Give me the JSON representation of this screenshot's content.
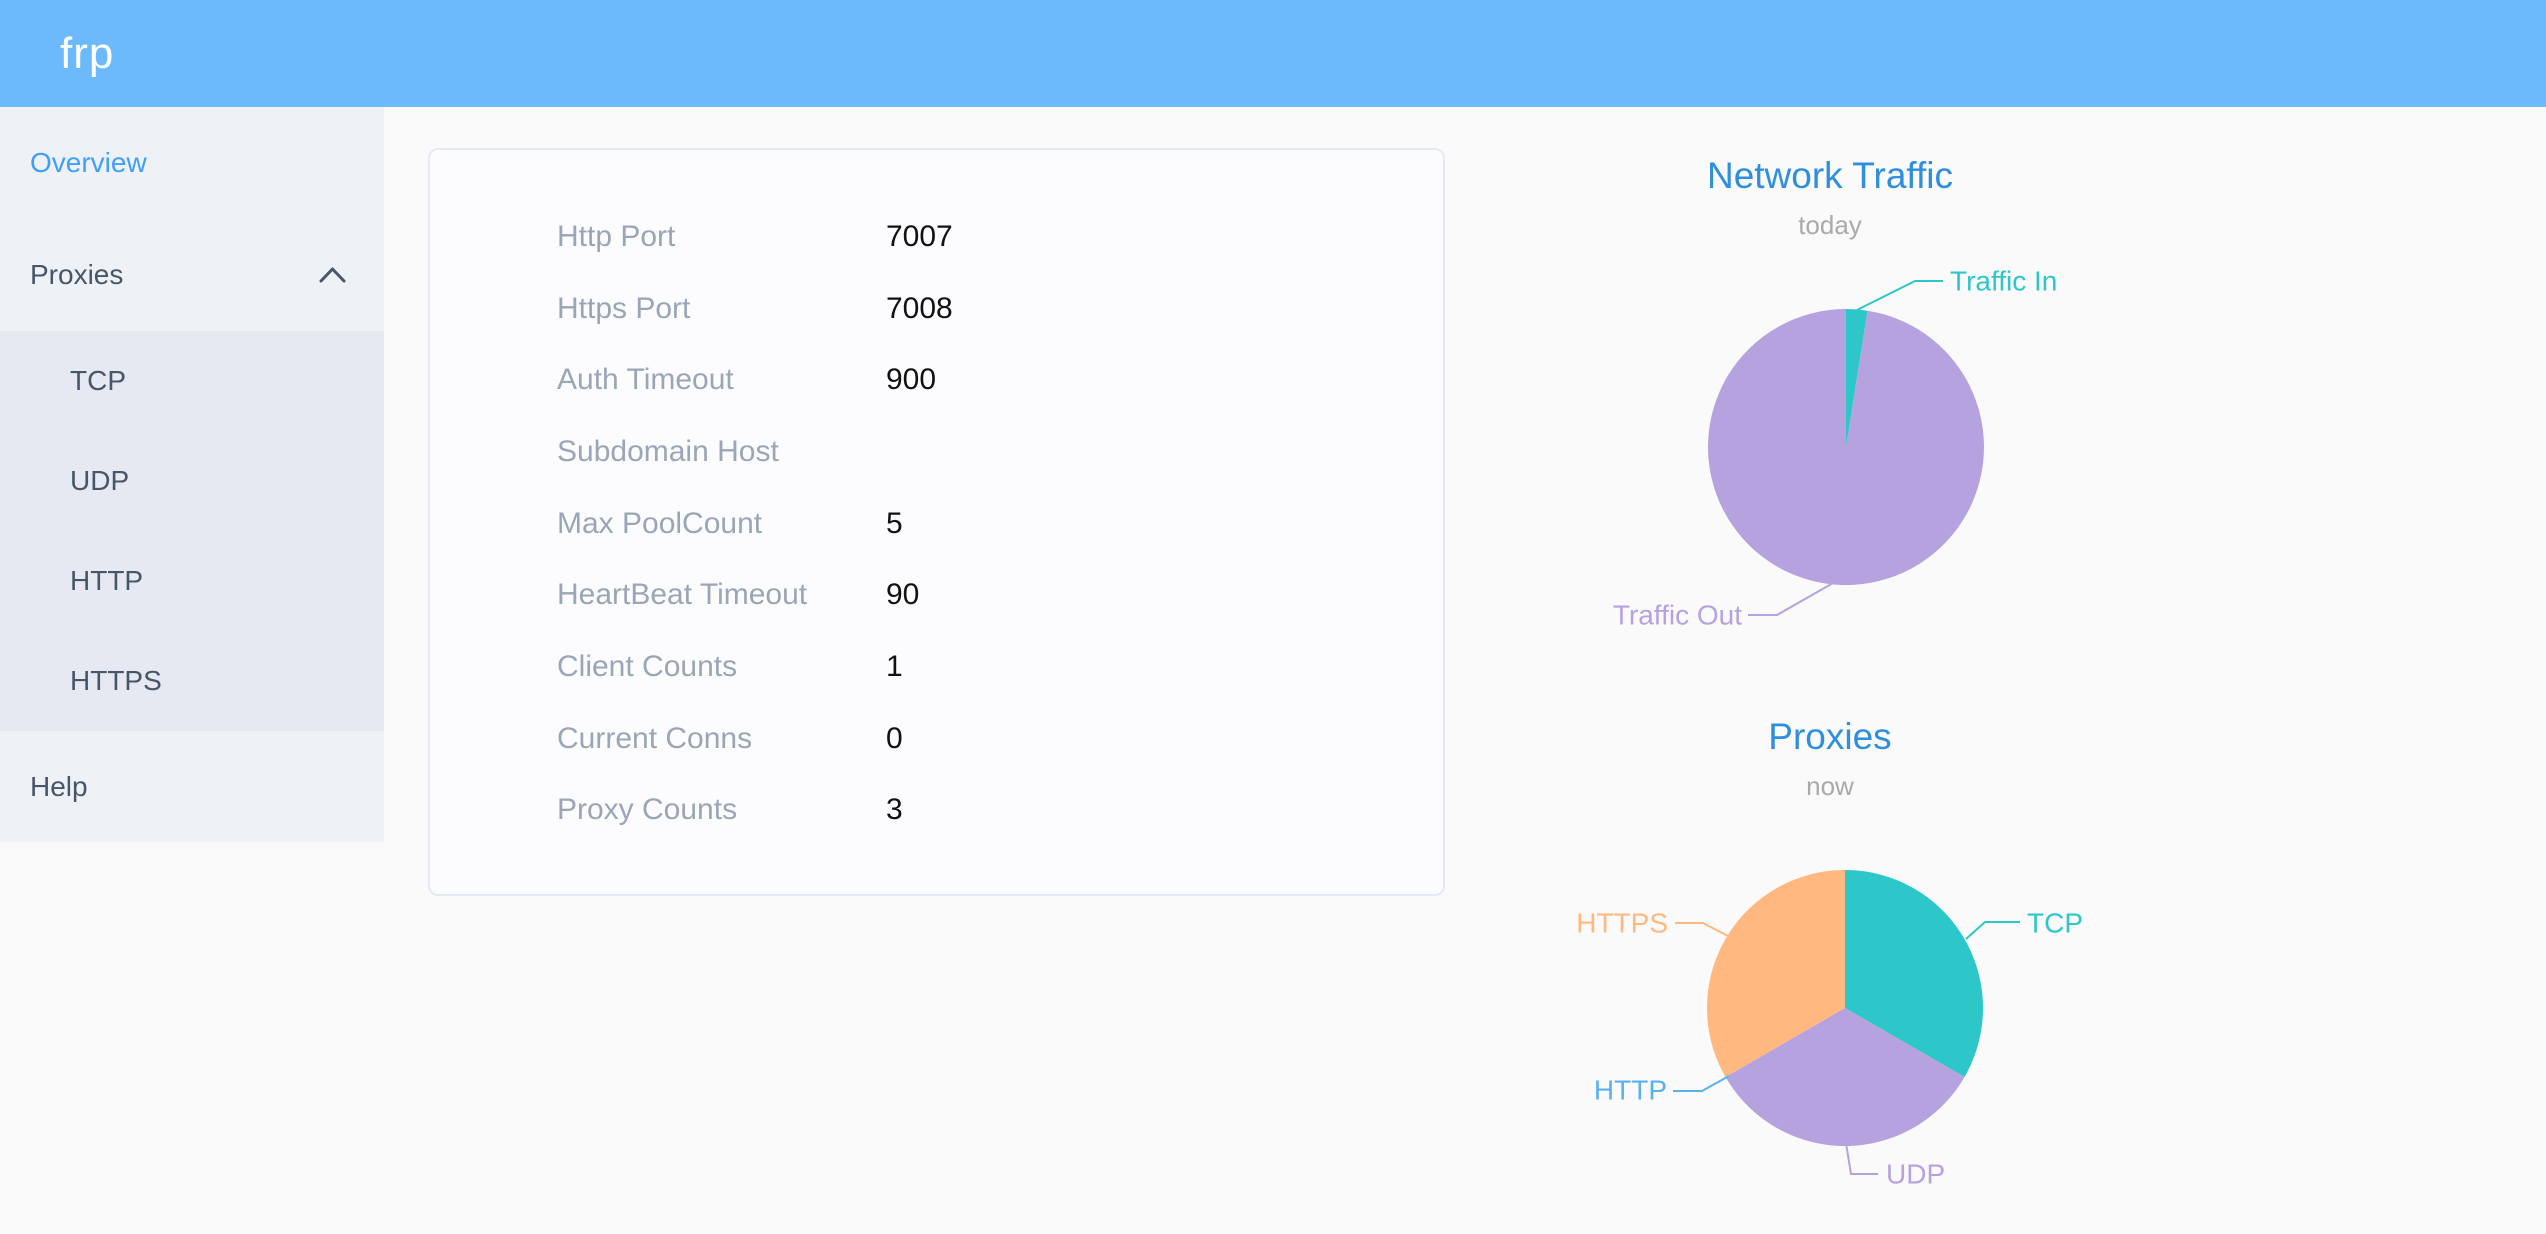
{
  "header": {
    "logo": "frp",
    "bg_color": "#6cbafb"
  },
  "sidebar": {
    "bg_color": "#eef1f6",
    "submenu_bg_color": "#e6e9f2",
    "text_color": "#475669",
    "active_color": "#3f9ffa",
    "items": [
      {
        "label": "Overview",
        "active": true
      },
      {
        "label": "Proxies",
        "expanded": true,
        "children": [
          {
            "label": "TCP"
          },
          {
            "label": "UDP"
          },
          {
            "label": "HTTP"
          },
          {
            "label": "HTTPS"
          }
        ]
      },
      {
        "label": "Help"
      }
    ]
  },
  "server_info": {
    "rows": [
      {
        "label": "Http Port",
        "value": "7007"
      },
      {
        "label": "Https Port",
        "value": "7008"
      },
      {
        "label": "Auth Timeout",
        "value": "900"
      },
      {
        "label": "Subdomain Host",
        "value": ""
      },
      {
        "label": "Max PoolCount",
        "value": "5"
      },
      {
        "label": "HeartBeat Timeout",
        "value": "90"
      },
      {
        "label": "Client Counts",
        "value": "1"
      },
      {
        "label": "Current Conns",
        "value": "0"
      },
      {
        "label": "Proxy Counts",
        "value": "3"
      }
    ]
  },
  "chart_data": [
    {
      "type": "pie",
      "id": "network-traffic",
      "title": "Network Traffic",
      "subtitle": "today",
      "title_color": "#2f8edd",
      "subtitle_color": "#aaaaaa",
      "start_angle_deg": 0,
      "clockwise": true,
      "values_are_percent_estimates": true,
      "series": [
        {
          "name": "Traffic In",
          "value": 2.5,
          "color": "#2ec7c9"
        },
        {
          "name": "Traffic Out",
          "value": 97.5,
          "color": "#b6a2de"
        }
      ]
    },
    {
      "type": "pie",
      "id": "proxies",
      "title": "Proxies",
      "subtitle": "now",
      "title_color": "#2f8edd",
      "subtitle_color": "#aaaaaa",
      "start_angle_deg": 0,
      "clockwise": true,
      "series": [
        {
          "name": "TCP",
          "value": 1,
          "color": "#2ec7c9"
        },
        {
          "name": "UDP",
          "value": 1,
          "color": "#b6a2de"
        },
        {
          "name": "HTTP",
          "value": 0,
          "color": "#5ab1ef"
        },
        {
          "name": "HTTPS",
          "value": 1,
          "color": "#ffb980"
        }
      ]
    }
  ]
}
